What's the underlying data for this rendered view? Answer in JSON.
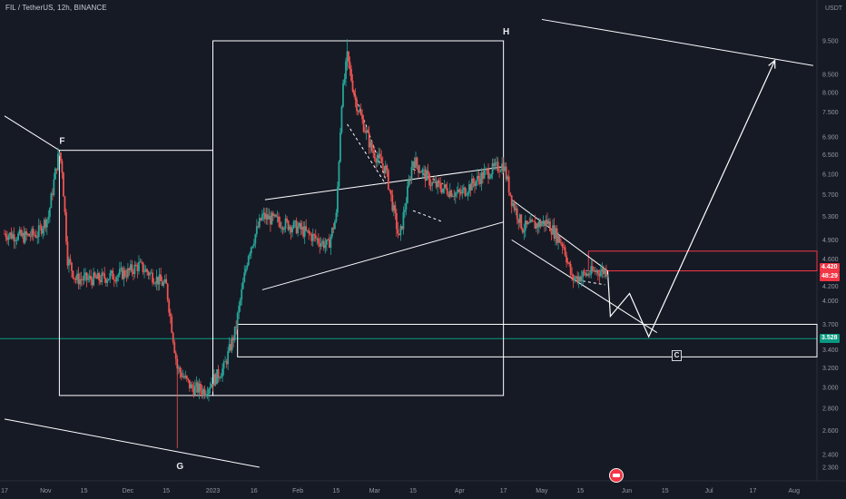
{
  "header": {
    "symbol_title": "FIL / TetherUS, 12h, BINANCE",
    "currency": "USDT"
  },
  "colors": {
    "background": "#161a25",
    "candle_up": "#26a69a",
    "candle_down": "#ef5350",
    "drawing": "#ffffff",
    "green_line": "#089981",
    "red_zone": "#f23645",
    "axis_text": "#9598a1"
  },
  "chart_data": {
    "type": "candlestick",
    "ylabel": "USDT",
    "log_scale": true,
    "ylim": [
      2.2,
      10.2
    ],
    "y_ticks": [
      "9.500",
      "8.500",
      "8.000",
      "7.500",
      "6.900",
      "6.500",
      "6.100",
      "5.700",
      "5.300",
      "4.900",
      "4.600",
      "4.200",
      "4.000",
      "3.700",
      "3.400",
      "3.200",
      "3.000",
      "2.800",
      "2.600",
      "2.400",
      "2.300"
    ],
    "x_ticks": [
      "17",
      "Nov",
      "15",
      "Dec",
      "15",
      "2023",
      "16",
      "Feb",
      "15",
      "Mar",
      "15",
      "Apr",
      "17",
      "May",
      "15",
      "Jun",
      "15",
      "Jul",
      "17",
      "Aug"
    ],
    "price_series": [
      [
        "2022-10-17",
        5.0
      ],
      [
        "2022-10-24",
        4.95
      ],
      [
        "2022-10-29",
        5.0
      ],
      [
        "2022-11-02",
        5.3
      ],
      [
        "2022-11-05",
        6.3
      ],
      [
        "2022-11-06",
        6.55
      ],
      [
        "2022-11-07",
        6.2
      ],
      [
        "2022-11-09",
        4.6
      ],
      [
        "2022-11-12",
        4.3
      ],
      [
        "2022-11-20",
        4.3
      ],
      [
        "2022-12-01",
        4.4
      ],
      [
        "2022-12-05",
        4.5
      ],
      [
        "2022-12-15",
        4.2
      ],
      [
        "2022-12-19",
        3.2
      ],
      [
        "2022-12-24",
        3.0
      ],
      [
        "2022-12-29",
        2.97
      ],
      [
        "2023-01-05",
        3.2
      ],
      [
        "2023-01-09",
        3.6
      ],
      [
        "2023-01-14",
        4.7
      ],
      [
        "2023-01-19",
        5.3
      ],
      [
        "2023-02-01",
        5.1
      ],
      [
        "2023-02-12",
        4.8
      ],
      [
        "2023-02-15",
        5.3
      ],
      [
        "2023-02-17",
        7.8
      ],
      [
        "2023-02-19",
        9.0
      ],
      [
        "2023-02-22",
        7.8
      ],
      [
        "2023-02-28",
        6.6
      ],
      [
        "2023-03-05",
        6.2
      ],
      [
        "2023-03-10",
        4.9
      ],
      [
        "2023-03-15",
        6.4
      ],
      [
        "2023-03-22",
        5.9
      ],
      [
        "2023-04-01",
        5.7
      ],
      [
        "2023-04-10",
        6.1
      ],
      [
        "2023-04-17",
        6.3
      ],
      [
        "2023-04-20",
        5.6
      ],
      [
        "2023-04-24",
        5.1
      ],
      [
        "2023-05-03",
        5.2
      ],
      [
        "2023-05-09",
        4.8
      ],
      [
        "2023-05-12",
        4.3
      ],
      [
        "2023-05-21",
        4.42
      ],
      [
        "2023-05-25",
        4.42
      ]
    ],
    "series": [
      {
        "values": [
          {
            "x": "2023-05-25",
            "y": 4.42
          },
          {
            "x": "2023-05-26",
            "y": 3.8
          },
          {
            "x": "2023-06-02",
            "y": 4.1
          },
          {
            "x": "2023-06-09",
            "y": 3.55
          },
          {
            "x": "2023-07-25",
            "y": 8.9
          }
        ]
      }
    ],
    "horizontal_levels": [
      {
        "label": "3.528",
        "price": 3.528,
        "color": "#089981"
      },
      {
        "label": "4.420",
        "price": 4.42,
        "color": "#f23645"
      }
    ],
    "price_tags": [
      {
        "text": "4.420",
        "price": 4.42,
        "color": "#f23645"
      },
      {
        "text": "48:29",
        "price": 4.33,
        "color": "#f23645"
      },
      {
        "text": "3.528",
        "price": 3.528,
        "color": "#089981"
      }
    ],
    "annotations": [
      {
        "text": "F",
        "x": "2022-11-06",
        "y": 6.6
      },
      {
        "text": "G",
        "x": "2022-12-19",
        "y": 2.4
      },
      {
        "text": "H",
        "x": "2023-04-17",
        "y": 9.5
      },
      {
        "text": "C",
        "x": "2023-06-10",
        "y": 3.35
      }
    ]
  }
}
